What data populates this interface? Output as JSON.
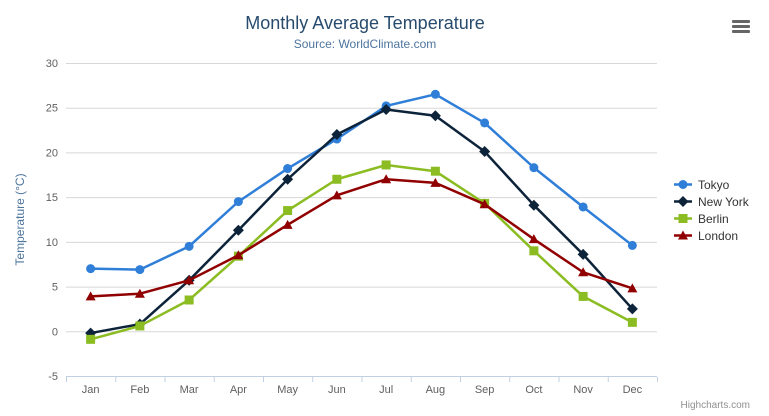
{
  "chart": {
    "title": "Monthly Average Temperature",
    "subtitle": "Source: WorldClimate.com",
    "credits": "Highcharts.com",
    "colors": {
      "title": "#274b6d",
      "subtitle": "#4d759e",
      "axis_labels": "#606060",
      "axis_title": "#4d759e",
      "grid": "#d8d8d8",
      "axis_line": "#c0d0e0",
      "legend_text": "#333333",
      "credits": "#909090",
      "menu_icon": "#666666"
    }
  },
  "chart_data": {
    "type": "line",
    "title": "Monthly Average Temperature",
    "subtitle": "Source: WorldClimate.com",
    "categories": [
      "Jan",
      "Feb",
      "Mar",
      "Apr",
      "May",
      "Jun",
      "Jul",
      "Aug",
      "Sep",
      "Oct",
      "Nov",
      "Dec"
    ],
    "series": [
      {
        "name": "Tokyo",
        "color": "#2f7ed8",
        "marker": "circle",
        "values": [
          7.0,
          6.9,
          9.5,
          14.5,
          18.2,
          21.5,
          25.2,
          26.5,
          23.3,
          18.3,
          13.9,
          9.6
        ]
      },
      {
        "name": "New York",
        "color": "#0d233a",
        "marker": "diamond",
        "values": [
          -0.2,
          0.8,
          5.7,
          11.3,
          17.0,
          22.0,
          24.8,
          24.1,
          20.1,
          14.1,
          8.6,
          2.5
        ]
      },
      {
        "name": "Berlin",
        "color": "#8bbc21",
        "marker": "square",
        "values": [
          -0.9,
          0.6,
          3.5,
          8.4,
          13.5,
          17.0,
          18.6,
          17.9,
          14.3,
          9.0,
          3.9,
          1.0
        ]
      },
      {
        "name": "London",
        "color": "#910000",
        "marker": "triangle",
        "values": [
          3.9,
          4.2,
          5.7,
          8.5,
          11.9,
          15.2,
          17.0,
          16.6,
          14.2,
          10.3,
          6.6,
          4.8
        ]
      }
    ],
    "xlabel": "",
    "ylabel": "Temperature (°C)",
    "ylim": [
      -5,
      30
    ],
    "yticks": [
      -5,
      0,
      5,
      10,
      15,
      20,
      25,
      30
    ],
    "grid": true,
    "legend_position": "right"
  }
}
